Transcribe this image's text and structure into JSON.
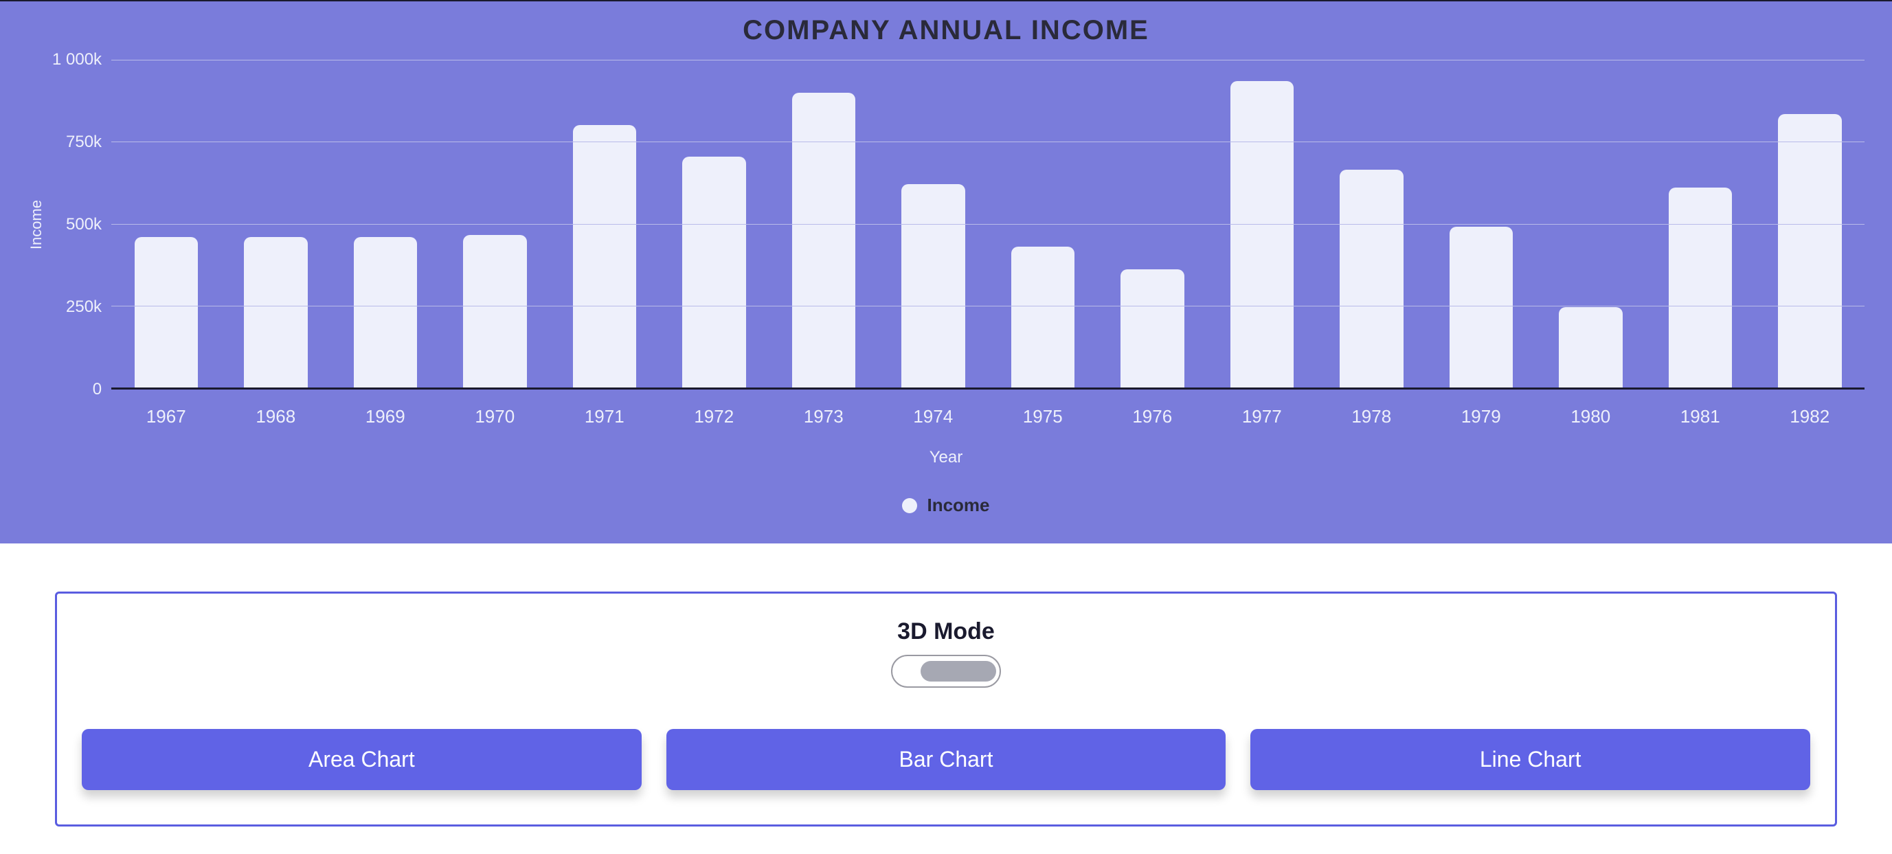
{
  "chart": {
    "type": "bar",
    "title": "COMPANY ANNUAL INCOME",
    "title_color": "#2a2a3a",
    "title_fontsize": 40,
    "background_color": "#7a7cdb",
    "bar_color": "#eef0fb",
    "grid_color": "#b9bbe9",
    "axis_text_color": "#eef0fb",
    "baseline_color": "#1a1a2e",
    "bar_border_radius": 10,
    "bar_width_ratio": 0.58,
    "y_axis_label": "Income",
    "x_axis_label": "Year",
    "y_ticks": [
      "1 000k",
      "750k",
      "500k",
      "250k",
      "0"
    ],
    "y_tick_values": [
      1000,
      750,
      500,
      250,
      0
    ],
    "ylim": [
      0,
      1000
    ],
    "categories": [
      "1967",
      "1968",
      "1969",
      "1970",
      "1971",
      "1972",
      "1973",
      "1974",
      "1975",
      "1976",
      "1977",
      "1978",
      "1979",
      "1980",
      "1981",
      "1982"
    ],
    "values": [
      460,
      460,
      460,
      465,
      800,
      705,
      900,
      620,
      430,
      360,
      935,
      665,
      490,
      245,
      610,
      835
    ],
    "legend": {
      "dot_color": "#eef0fb",
      "label": "Income",
      "label_color": "#2a2a3a"
    }
  },
  "controls": {
    "border_color": "#5a5de0",
    "mode_label": "3D Mode",
    "toggle_state": "off",
    "toggle_track_bg": "#ffffff",
    "toggle_track_border": "#9a9aa2",
    "toggle_knob_color": "#a6a8b3",
    "buttons": {
      "bg": "#6063e6",
      "text_color": "#ffffff",
      "area": "Area Chart",
      "bar": "Bar Chart",
      "line": "Line Chart"
    }
  }
}
